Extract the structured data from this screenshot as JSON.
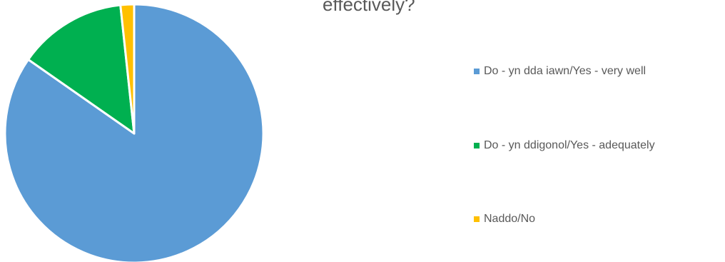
{
  "chart_data": {
    "type": "pie",
    "title": "effectively?",
    "categories": [
      "Do - yn dda iawn/Yes - very well",
      "Do - yn ddigonol/Yes - adequately",
      "Naddo/No"
    ],
    "values": [
      84.7,
      13.6,
      1.7
    ],
    "colors": [
      "#5b9bd5",
      "#00b050",
      "#ffc000"
    ],
    "legend_position": "right"
  }
}
